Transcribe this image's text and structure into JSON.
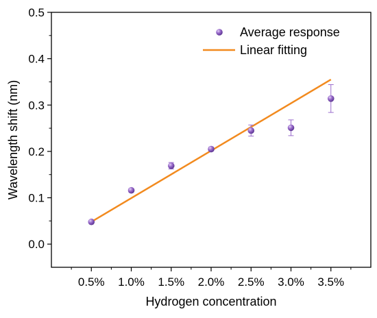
{
  "chart_data": {
    "type": "scatter",
    "title": "",
    "xlabel": "Hydrogen concentration",
    "ylabel": "Wavelength shift (nm)",
    "x": [
      "0.5%",
      "1.0%",
      "1.5%",
      "2.0%",
      "2.5%",
      "3.0%",
      "3.5%"
    ],
    "x_values": [
      0.5,
      1.0,
      1.5,
      2.0,
      2.5,
      3.0,
      3.5
    ],
    "xlim": [
      0.0,
      4.0
    ],
    "ylim": [
      -0.05,
      0.5
    ],
    "yticks": [
      "0.0",
      "0.1",
      "0.2",
      "0.3",
      "0.4",
      "0.5"
    ],
    "ytick_values": [
      0.0,
      0.1,
      0.2,
      0.3,
      0.4,
      0.5
    ],
    "grid": false,
    "legend_position": "top-right",
    "series": [
      {
        "name": "Average response",
        "kind": "scatter",
        "color": "#8a5bbf",
        "y": [
          0.048,
          0.116,
          0.169,
          0.205,
          0.245,
          0.251,
          0.314
        ],
        "error": [
          0.003,
          0.004,
          0.007,
          0.004,
          0.012,
          0.017,
          0.03
        ]
      },
      {
        "name": "Linear fitting",
        "kind": "line",
        "color": "#f28a1e",
        "x_range": [
          0.5,
          3.5
        ],
        "y_range": [
          0.048,
          0.355
        ]
      }
    ]
  }
}
